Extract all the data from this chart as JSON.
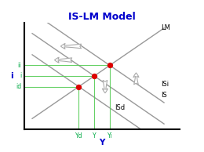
{
  "title": "IS-LM Model",
  "title_color": "#0000cc",
  "title_fontsize": 9,
  "axis_color": "#000000",
  "xlabel": "Y",
  "ylabel": "i",
  "xlabel_color": "#0000cc",
  "ylabel_color": "#0000cc",
  "tick_color": "#00aa44",
  "xlim": [
    0,
    10
  ],
  "ylim": [
    0,
    10
  ],
  "curve_color": "#999999",
  "green_line_color": "#55cc55",
  "dot_color": "#dd0000",
  "label_color": "#000000",
  "is_label": "IS",
  "isi_label": "ISi",
  "isd_label": "ISd",
  "lm_label": "LM",
  "ii_label": "ii",
  "i_label": "i",
  "id_label": "id",
  "yd_label": "Yd",
  "y_label": "Y",
  "yi_label": "Yi",
  "is_slope": -1.0,
  "is_intercept": 9.5,
  "isi_slope": -1.0,
  "isi_intercept": 11.5,
  "isd_slope": -1.0,
  "isd_intercept": 7.5,
  "lm_slope": 1.0,
  "lm_intercept": 0.5,
  "pt_is_lm_x": 4.5,
  "pt_is_lm_y": 5.0,
  "pt_isi_lm_x": 5.5,
  "pt_isi_lm_y": 6.0,
  "pt_isd_lm_x": 3.5,
  "pt_isd_lm_y": 4.0,
  "yd_x": 3.5,
  "y_eq_x": 4.5,
  "yi_x": 5.5,
  "id_y": 4.0,
  "i_eq_y": 5.0,
  "ii_y": 6.0,
  "arrow_color": "#aaaaaa",
  "arrow_fc": "white"
}
